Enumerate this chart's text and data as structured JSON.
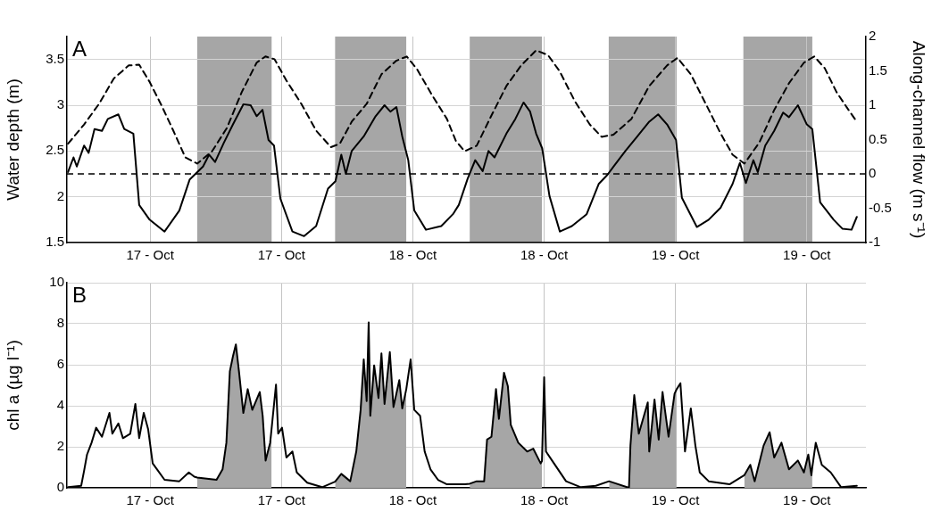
{
  "chart_data": [
    {
      "type": "line",
      "annotations": [
        "A"
      ],
      "ylabel": "Water depth (m)",
      "y2label": "Along-channel flow (m s⁻¹)",
      "xlim": [
        "--10-16T16:24",
        "--10-19T17:24"
      ],
      "xticks": [
        {
          "value": "--10-17T00:00",
          "label": "17 - Oct"
        },
        {
          "value": "--10-17T12:00",
          "label": "17 - Oct"
        },
        {
          "value": "--10-18T00:00",
          "label": "18 - Oct"
        },
        {
          "value": "--10-18T12:00",
          "label": "18 - Oct"
        },
        {
          "value": "--10-19T00:00",
          "label": "19 - Oct"
        },
        {
          "value": "--10-19T12:00",
          "label": "19 - Oct"
        }
      ],
      "ylim": [
        1.5,
        3.75
      ],
      "yticks": [
        1.5,
        2,
        2.5,
        3,
        3.5
      ],
      "y2lim": [
        -1,
        2
      ],
      "y2ticks": [
        -1,
        -0.5,
        0,
        0.5,
        1,
        1.5,
        2
      ],
      "grid": true,
      "bands": [
        {
          "axis": "x",
          "from": "--10-17T04:18",
          "to": "--10-17T11:06",
          "color": "#a6a6a6"
        },
        {
          "axis": "x",
          "from": "--10-17T16:54",
          "to": "--10-17T23:24",
          "color": "#a6a6a6"
        },
        {
          "axis": "x",
          "from": "--10-18T05:12",
          "to": "--10-18T11:48",
          "color": "#a6a6a6"
        },
        {
          "axis": "x",
          "from": "--10-18T17:54",
          "to": "--10-19T00:06",
          "color": "#a6a6a6"
        },
        {
          "axis": "x",
          "from": "--10-19T06:12",
          "to": "--10-19T12:30",
          "color": "#a6a6a6"
        }
      ],
      "ref_lines": [
        {
          "axis": "y2",
          "value": 0,
          "color": "#000000",
          "line_style": "dashed"
        }
      ],
      "series": [
        {
          "color": "#000000",
          "x": [
            "--10-16T16:30",
            "--10-16T17:00",
            "--10-16T17:18",
            "--10-16T17:58",
            "--10-16T18:23",
            "--10-16T18:55",
            "--10-16T19:36",
            "--10-16T20:08",
            "--10-16T21:06",
            "--10-16T21:38",
            "--10-16T22:28",
            "--10-16T23:00",
            "--10-16T23:57",
            "--10-17T01:19",
            "--10-17T02:40",
            "--10-17T03:37",
            "--10-17T04:50",
            "--10-17T05:23",
            "--10-17T05:56",
            "--10-17T06:44",
            "--10-17T07:34",
            "--10-17T08:31",
            "--10-17T09:11",
            "--10-17T09:44",
            "--10-17T10:16",
            "--10-17T10:49",
            "--10-17T11:19",
            "--10-17T11:54",
            "--10-17T13:00",
            "--10-17T14:04",
            "--10-17T15:10",
            "--10-17T16:15",
            "--10-17T16:56",
            "--10-17T17:28",
            "--10-17T17:53",
            "--10-17T18:25",
            "--10-17T19:31",
            "--10-17T20:36",
            "--10-17T21:25",
            "--10-17T21:57",
            "--10-17T22:30",
            "--10-17T23:02",
            "--10-17T23:35",
            "--10-18T00:08",
            "--10-18T01:12",
            "--10-18T02:36",
            "--10-18T03:40",
            "--10-18T04:12",
            "--10-18T05:01",
            "--10-18T05:42",
            "--10-18T06:23",
            "--10-18T06:55",
            "--10-18T07:28",
            "--10-18T08:33",
            "--10-18T09:22",
            "--10-18T10:07",
            "--10-18T10:43",
            "--10-18T11:16",
            "--10-18T11:49",
            "--10-18T12:29",
            "--10-18T13:26",
            "--10-18T14:32",
            "--10-18T15:53",
            "--10-18T16:59",
            "--10-18T17:47",
            "--10-18T18:20",
            "--10-18T19:25",
            "--10-18T20:31",
            "--10-18T21:36",
            "--10-18T22:25",
            "--10-18T23:14",
            "--10-19T00:03",
            "--10-19T00:35",
            "--10-19T01:57",
            "--10-19T03:02",
            "--10-19T04:07",
            "--10-19T05:13",
            "--10-19T05:53",
            "--10-19T06:26",
            "--10-19T07:07",
            "--10-19T07:31",
            "--10-19T08:12",
            "--10-19T09:01",
            "--10-19T09:50",
            "--10-19T10:22",
            "--10-19T11:11",
            "--10-19T12:00",
            "--10-19T12:30",
            "--10-19T13:13",
            "--10-19T14:27",
            "--10-19T15:16",
            "--10-19T16:05",
            "--10-19T16:34"
          ],
          "values": [
            2.27,
            2.43,
            2.33,
            2.56,
            2.48,
            2.74,
            2.72,
            2.85,
            2.9,
            2.74,
            2.69,
            1.91,
            1.75,
            1.62,
            1.85,
            2.19,
            2.33,
            2.46,
            2.38,
            2.59,
            2.79,
            3.01,
            3.0,
            2.88,
            2.95,
            2.62,
            2.56,
            1.98,
            1.62,
            1.57,
            1.68,
            2.09,
            2.17,
            2.46,
            2.25,
            2.5,
            2.66,
            2.88,
            3.0,
            2.93,
            2.98,
            2.66,
            2.4,
            1.85,
            1.64,
            1.68,
            1.81,
            1.91,
            2.2,
            2.4,
            2.28,
            2.5,
            2.43,
            2.69,
            2.85,
            3.03,
            2.93,
            2.69,
            2.53,
            2.01,
            1.62,
            1.68,
            1.81,
            2.14,
            2.24,
            2.33,
            2.5,
            2.66,
            2.82,
            2.9,
            2.79,
            2.62,
            1.99,
            1.67,
            1.75,
            1.88,
            2.14,
            2.37,
            2.15,
            2.4,
            2.27,
            2.56,
            2.72,
            2.92,
            2.87,
            3.0,
            2.79,
            2.74,
            1.94,
            1.75,
            1.65,
            1.64,
            1.78
          ]
        },
        {
          "color": "#000000",
          "axis": "y2",
          "line_style": "dashed",
          "x": [
            "--10-16T16:30",
            "--10-16T17:58",
            "--10-16T19:20",
            "--10-16T20:41",
            "--10-16T22:03",
            "--10-16T23:00",
            "--10-16T23:57",
            "--10-17T01:02",
            "--10-17T02:07",
            "--10-17T03:13",
            "--10-17T04:18",
            "--10-17T05:40",
            "--10-17T07:01",
            "--10-17T08:22",
            "--10-17T09:44",
            "--10-17T10:32",
            "--10-17T11:22",
            "--10-17T12:27",
            "--10-17T13:49",
            "--10-17T15:10",
            "--10-17T16:31",
            "--10-17T17:20",
            "--10-17T18:25",
            "--10-17T19:47",
            "--10-17T21:08",
            "--10-17T22:30",
            "--10-17T23:27",
            "--10-18T00:24",
            "--10-18T01:45",
            "--10-18T03:07",
            "--10-18T03:56",
            "--10-18T04:44",
            "--10-18T05:50",
            "--10-18T07:11",
            "--10-18T08:33",
            "--10-18T09:54",
            "--10-18T11:16",
            "--10-18T12:21",
            "--10-18T13:26",
            "--10-18T14:48",
            "--10-18T16:10",
            "--10-18T17:15",
            "--10-18T18:20",
            "--10-18T19:58",
            "--10-18T21:36",
            "--10-18T23:14",
            "--10-19T00:11",
            "--10-19T01:24",
            "--10-19T02:46",
            "--10-19T04:07",
            "--10-19T05:13",
            "--10-19T06:18",
            "--10-19T07:40",
            "--10-19T09:01",
            "--10-19T10:22",
            "--10-19T11:44",
            "--10-19T12:41",
            "--10-19T13:38",
            "--10-19T14:43",
            "--10-19T15:49",
            "--10-19T16:34"
          ],
          "values": [
            0.44,
            0.72,
            1.02,
            1.39,
            1.58,
            1.59,
            1.34,
            1.0,
            0.63,
            0.24,
            0.15,
            0.33,
            0.67,
            1.19,
            1.62,
            1.71,
            1.67,
            1.36,
            1.02,
            0.63,
            0.39,
            0.44,
            0.76,
            1.02,
            1.45,
            1.65,
            1.71,
            1.52,
            1.15,
            0.8,
            0.48,
            0.33,
            0.41,
            0.85,
            1.28,
            1.58,
            1.8,
            1.73,
            1.49,
            1.06,
            0.72,
            0.54,
            0.57,
            0.8,
            1.28,
            1.58,
            1.69,
            1.45,
            1.02,
            0.59,
            0.28,
            0.15,
            0.46,
            0.93,
            1.32,
            1.62,
            1.71,
            1.54,
            1.19,
            0.93,
            0.76
          ]
        }
      ]
    },
    {
      "type": "line",
      "annotations": [
        "B"
      ],
      "ylabel": "chl a (µg l⁻¹)",
      "xlim": [
        "--10-16T16:24",
        "--10-19T17:24"
      ],
      "xticks": [
        {
          "value": "--10-17T00:00",
          "label": "17 - Oct"
        },
        {
          "value": "--10-17T12:00",
          "label": "17 - Oct"
        },
        {
          "value": "--10-18T00:00",
          "label": "18 - Oct"
        },
        {
          "value": "--10-18T12:00",
          "label": "18 - Oct"
        },
        {
          "value": "--10-19T00:00",
          "label": "19 - Oct"
        },
        {
          "value": "--10-19T12:00",
          "label": "19 - Oct"
        }
      ],
      "ylim": [
        0,
        10
      ],
      "yticks": [
        0,
        2,
        4,
        6,
        8,
        10
      ],
      "grid": true,
      "series": [
        {
          "type": "area",
          "color": "#a6a6a6",
          "x": [
            "--10-17T04:18",
            "--10-17T06:04",
            "--10-17T06:37",
            "--10-17T06:58",
            "--10-17T07:17",
            "--10-17T07:34",
            "--10-17T07:50",
            "--10-17T08:07",
            "--10-17T08:31",
            "--10-17T08:55",
            "--10-17T09:20",
            "--10-17T10:01",
            "--10-17T10:17",
            "--10-17T10:33",
            "--10-17T10:58",
            "--10-17T11:06"
          ],
          "values": [
            0.5,
            0.39,
            0.9,
            2.2,
            5.68,
            6.41,
            6.99,
            5.68,
            3.65,
            4.81,
            3.8,
            4.67,
            3.51,
            1.33,
            2.2,
            2.9
          ]
        },
        {
          "type": "area",
          "color": "#a6a6a6",
          "x": [
            "--10-17T16:54",
            "--10-17T17:28",
            "--10-17T18:17",
            "--10-17T18:50",
            "--10-17T19:14",
            "--10-17T19:31",
            "--10-17T19:47",
            "--10-17T19:58",
            "--10-17T20:07",
            "--10-17T20:28",
            "--10-17T20:52",
            "--10-17T21:08",
            "--10-17T21:25",
            "--10-17T21:54",
            "--10-17T22:14",
            "--10-17T22:46",
            "--10-17T23:02",
            "--10-17T23:24"
          ],
          "values": [
            0.3,
            0.68,
            0.32,
            1.77,
            3.8,
            6.26,
            4.23,
            8.07,
            3.51,
            5.97,
            4.38,
            6.55,
            4.09,
            6.62,
            3.94,
            5.25,
            3.87,
            4.8
          ]
        },
        {
          "type": "area",
          "color": "#a6a6a6",
          "x": [
            "--10-18T05:12",
            "--10-18T05:50",
            "--10-18T06:31",
            "--10-18T06:47",
            "--10-18T07:11",
            "--10-18T07:36",
            "--10-18T07:52",
            "--10-18T08:20",
            "--10-18T08:41",
            "--10-18T08:57",
            "--10-18T09:38",
            "--10-18T10:27",
            "--10-18T11:00",
            "--10-18T11:41",
            "--10-18T11:48"
          ],
          "values": [
            0.2,
            0.32,
            0.32,
            2.35,
            2.49,
            4.81,
            3.36,
            5.61,
            4.96,
            3.07,
            2.2,
            1.77,
            1.91,
            1.19,
            1.3
          ]
        },
        {
          "type": "area",
          "color": "#a6a6a6",
          "x": [
            "--10-18T17:56",
            "--10-18T19:45",
            "--10-18T19:53",
            "--10-18T20:14",
            "--10-18T20:39",
            "--10-18T21:28",
            "--10-18T21:36",
            "--10-18T22:05",
            "--10-18T22:28",
            "--10-18T22:49",
            "--10-18T23:22",
            "--10-18T23:55",
            "--10-19T00:06"
          ],
          "values": [
            0.32,
            0.0,
            2.06,
            4.52,
            2.64,
            4.16,
            1.77,
            4.3,
            2.35,
            4.67,
            2.49,
            4.59,
            4.8
          ]
        },
        {
          "type": "area",
          "color": "#a6a6a6",
          "x": [
            "--10-19T06:17",
            "--10-19T06:50",
            "--10-19T07:14",
            "--10-19T08:03",
            "--10-19T08:36",
            "--10-19T09:01",
            "--10-19T09:41",
            "--10-19T10:22",
            "--10-19T11:11",
            "--10-19T11:44",
            "--10-19T12:08",
            "--10-19T12:25",
            "--10-19T12:30"
          ],
          "values": [
            0.61,
            1.12,
            0.32,
            2.06,
            2.71,
            1.48,
            2.2,
            0.9,
            1.33,
            0.75,
            1.62,
            0.61,
            1.0
          ]
        },
        {
          "color": "#000000",
          "x": [
            "--10-16T16:30",
            "--10-16T17:42",
            "--10-16T17:58",
            "--10-16T18:14",
            "--10-16T18:39",
            "--10-16T19:04",
            "--10-16T19:36",
            "--10-16T20:17",
            "--10-16T20:33",
            "--10-16T21:06",
            "--10-16T21:31",
            "--10-16T22:11",
            "--10-16T22:39",
            "--10-16T23:00",
            "--10-16T23:25",
            "--10-16T23:49",
            "--10-17T00:14",
            "--10-17T00:38",
            "--10-17T01:19",
            "--10-17T02:40",
            "--10-17T03:32",
            "--10-17T04:02",
            "--10-17T04:18",
            "--10-17T06:04",
            "--10-17T06:37",
            "--10-17T06:58",
            "--10-17T07:17",
            "--10-17T07:34",
            "--10-17T07:50",
            "--10-17T08:07",
            "--10-17T08:31",
            "--10-17T08:55",
            "--10-17T09:20",
            "--10-17T10:01",
            "--10-17T10:17",
            "--10-17T10:33",
            "--10-17T10:58",
            "--10-17T11:06",
            "--10-17T11:30",
            "--10-17T11:42",
            "--10-17T12:03",
            "--10-17T12:27",
            "--10-17T13:00",
            "--10-17T13:24",
            "--10-17T14:21",
            "--10-17T15:43",
            "--10-17T16:54",
            "--10-17T17:28",
            "--10-17T18:17",
            "--10-17T18:50",
            "--10-17T19:14",
            "--10-17T19:31",
            "--10-17T19:47",
            "--10-17T19:58",
            "--10-17T20:07",
            "--10-17T20:28",
            "--10-17T20:52",
            "--10-17T21:08",
            "--10-17T21:25",
            "--10-17T21:54",
            "--10-17T22:14",
            "--10-17T22:46",
            "--10-17T23:02",
            "--10-17T23:24",
            "--10-17T23:48",
            "--10-18T00:08",
            "--10-18T00:40",
            "--10-18T01:05",
            "--10-18T01:37",
            "--10-18T02:18",
            "--10-18T03:07",
            "--10-18T04:45",
            "--10-18T05:12",
            "--10-18T05:50",
            "--10-18T06:31",
            "--10-18T06:47",
            "--10-18T07:11",
            "--10-18T07:36",
            "--10-18T07:52",
            "--10-18T08:20",
            "--10-18T08:41",
            "--10-18T08:57",
            "--10-18T09:38",
            "--10-18T10:27",
            "--10-18T11:00",
            "--10-18T11:41",
            "--10-18T11:48",
            "--10-18T12:00",
            "--10-18T12:10",
            "--10-18T12:54",
            "--10-18T14:00",
            "--10-18T15:21",
            "--10-18T16:43",
            "--10-18T17:56",
            "--10-18T19:45",
            "--10-18T19:53",
            "--10-18T20:14",
            "--10-18T20:39",
            "--10-18T21:28",
            "--10-18T21:36",
            "--10-18T22:05",
            "--10-18T22:28",
            "--10-18T22:49",
            "--10-18T23:22",
            "--10-18T23:55",
            "--10-19T00:06",
            "--10-19T00:27",
            "--10-19T00:52",
            "--10-19T01:24",
            "--10-19T01:49",
            "--10-19T02:13",
            "--10-19T03:02",
            "--10-19T04:56",
            "--10-19T06:17",
            "--10-19T06:50",
            "--10-19T07:14",
            "--10-19T08:03",
            "--10-19T08:36",
            "--10-19T09:01",
            "--10-19T09:41",
            "--10-19T10:22",
            "--10-19T11:11",
            "--10-19T11:44",
            "--10-19T12:08",
            "--10-19T12:25",
            "--10-19T12:30",
            "--10-19T12:49",
            "--10-19T13:22",
            "--10-19T14:11",
            "--10-19T15:08",
            "--10-19T16:34"
          ],
          "values": [
            0.03,
            0.1,
            0.83,
            1.62,
            2.2,
            2.93,
            2.49,
            3.65,
            2.64,
            3.14,
            2.42,
            2.64,
            4.09,
            2.42,
            3.65,
            2.86,
            1.19,
            0.9,
            0.39,
            0.32,
            0.75,
            0.54,
            0.5,
            0.39,
            0.9,
            2.2,
            5.68,
            6.41,
            6.99,
            5.68,
            3.65,
            4.81,
            3.8,
            4.67,
            3.51,
            1.33,
            2.2,
            2.9,
            5.03,
            2.64,
            2.93,
            1.48,
            1.77,
            0.75,
            0.25,
            0.03,
            0.3,
            0.68,
            0.32,
            1.77,
            3.8,
            6.26,
            4.23,
            8.07,
            3.51,
            5.97,
            4.38,
            6.55,
            4.09,
            6.62,
            3.94,
            5.25,
            3.87,
            4.8,
            6.26,
            3.8,
            3.51,
            1.77,
            0.9,
            0.39,
            0.17,
            0.17,
            0.2,
            0.32,
            0.32,
            2.35,
            2.49,
            4.81,
            3.36,
            5.61,
            4.96,
            3.07,
            2.2,
            1.77,
            1.91,
            1.19,
            1.3,
            5.39,
            1.77,
            1.19,
            0.32,
            0.03,
            0.1,
            0.32,
            0.0,
            2.06,
            4.52,
            2.64,
            4.16,
            1.77,
            4.3,
            2.35,
            4.67,
            2.49,
            4.59,
            4.8,
            5.1,
            1.77,
            3.87,
            2.06,
            0.75,
            0.32,
            0.17,
            0.61,
            1.12,
            0.32,
            2.06,
            2.71,
            1.48,
            2.2,
            0.9,
            1.33,
            0.75,
            1.62,
            0.61,
            1.0,
            2.2,
            1.12,
            0.75,
            0.03,
            0.1
          ]
        }
      ]
    }
  ]
}
